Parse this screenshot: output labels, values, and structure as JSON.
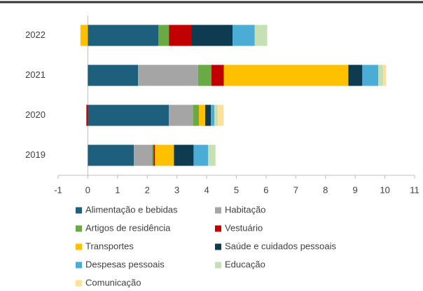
{
  "chart_data": {
    "type": "stacked_barh",
    "categories": [
      "2022",
      "2021",
      "2020",
      "2019"
    ],
    "xlim": [
      -1,
      11
    ],
    "xticks": [
      -1,
      0,
      1,
      2,
      3,
      4,
      5,
      6,
      7,
      8,
      9,
      10,
      11
    ],
    "series": [
      {
        "name": "Alimentação e bebidas",
        "color": "#1f5f7e",
        "values": [
          2.38,
          1.69,
          2.73,
          1.55
        ]
      },
      {
        "name": "Habitação",
        "color": "#a5a5a5",
        "values": [
          0,
          2.02,
          0.82,
          0.61
        ]
      },
      {
        "name": "Artigos de residência",
        "color": "#6aaa45",
        "values": [
          0.35,
          0.45,
          0.19,
          0.05
        ]
      },
      {
        "name": "Vestuário",
        "color": "#c00000",
        "values": [
          0.75,
          0.42,
          -0.05,
          0.05
        ]
      },
      {
        "name": "Transportes",
        "color": "#ffc000",
        "values": [
          -0.25,
          4.19,
          0.21,
          0.64
        ]
      },
      {
        "name": "Saúde e cuidados pessoais",
        "color": "#0f3b50",
        "values": [
          1.39,
          0.47,
          0.19,
          0.66
        ]
      },
      {
        "name": "Despesas pessoais",
        "color": "#4bacd6",
        "values": [
          0.75,
          0.54,
          0.12,
          0.49
        ]
      },
      {
        "name": "Educação",
        "color": "#c4e0b4",
        "values": [
          0.42,
          0.16,
          0.12,
          0.24
        ]
      },
      {
        "name": "Comunicação",
        "color": "#ffe09a",
        "values": [
          0,
          0.1,
          0.19,
          0.02
        ]
      }
    ]
  }
}
